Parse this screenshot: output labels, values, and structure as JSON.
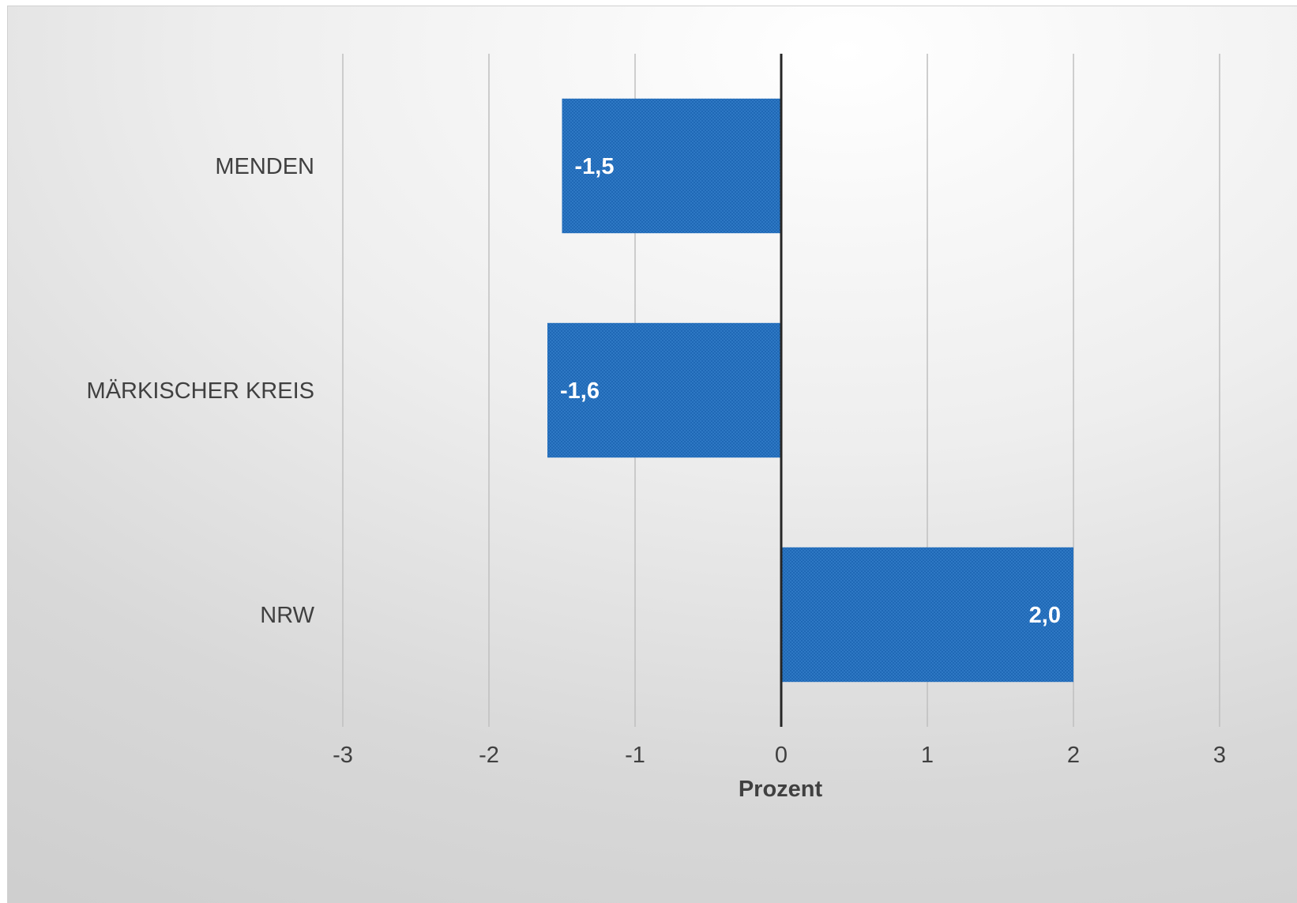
{
  "chart_data": {
    "type": "bar",
    "orientation": "horizontal",
    "categories": [
      "MENDEN",
      "MÄRKISCHER KREIS",
      "NRW"
    ],
    "values": [
      -1.5,
      -1.6,
      2.0
    ],
    "data_labels": [
      "-1,5",
      "-1,6",
      "2,0"
    ],
    "xlabel": "Prozent",
    "xlim": [
      -3,
      3
    ],
    "xticks": [
      -3,
      -2,
      -1,
      0,
      1,
      2,
      3
    ],
    "xtick_labels": [
      "-3",
      "-2",
      "-1",
      "0",
      "1",
      "2",
      "3"
    ],
    "grid": "vertical",
    "legend": "none",
    "colors": {
      "bar": "#1f68b5",
      "bar_pattern": "#3a82cc",
      "gridline": "#bfbfbf",
      "zero_line": "#262626",
      "text": "#404040",
      "data_label": "#ffffff"
    }
  }
}
